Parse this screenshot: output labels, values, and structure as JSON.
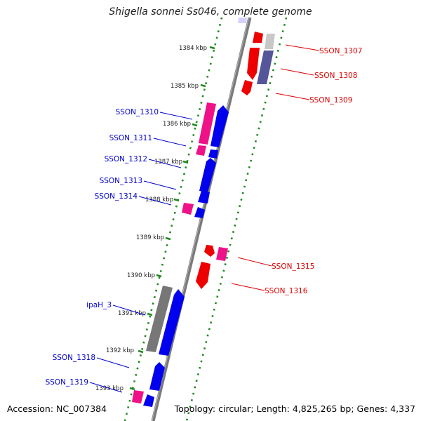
{
  "title": "Shigella sonnei Ss046, complete genome",
  "footer": {
    "accession": "Accession: NC_007384",
    "topology": "Topology: circular; Length: 4,825,265 bp; Genes: 4,337"
  },
  "colors": {
    "backbone": "#7a7a7a",
    "track_dots": "#1f8a1f",
    "gene_blue": "#0000ee",
    "gene_pink": "#ee1188",
    "gene_red": "#ee0000",
    "gene_gray": "#777777",
    "gene_light_gray": "#c8c8c8",
    "gene_purple": "#555599",
    "label_blue": "#0000cc",
    "label_red": "#dd0000"
  },
  "kbp_labels": [
    "1384 kbp",
    "1385 kbp",
    "1386 kbp",
    "1387 kbp",
    "1388 kbp",
    "1389 kbp",
    "1390 kbp",
    "1391 kbp",
    "1392 kbp",
    "1393 kbp"
  ],
  "genes": [
    {
      "label": "SSON_1307",
      "strand": "forward",
      "color": "red"
    },
    {
      "label": "SSON_1308",
      "strand": "forward",
      "color": "purple"
    },
    {
      "label": "SSON_1309",
      "strand": "forward",
      "color": "red"
    },
    {
      "label": "SSON_1310",
      "strand": "reverse",
      "color": "pink"
    },
    {
      "label": "SSON_1311",
      "strand": "reverse",
      "color": "pink"
    },
    {
      "label": "SSON_1312",
      "strand": "reverse",
      "color": "blue"
    },
    {
      "label": "SSON_1313",
      "strand": "reverse",
      "color": "blue"
    },
    {
      "label": "SSON_1314",
      "strand": "reverse",
      "color": "pink"
    },
    {
      "label": "SSON_1315",
      "strand": "forward",
      "color": "pink"
    },
    {
      "label": "SSON_1316",
      "strand": "forward",
      "color": "red"
    },
    {
      "label": "ipaH_3",
      "strand": "reverse",
      "color": "gray"
    },
    {
      "label": "SSON_1318",
      "strand": "reverse",
      "color": "blue"
    },
    {
      "label": "SSON_1319",
      "strand": "reverse",
      "color": "pink"
    }
  ]
}
